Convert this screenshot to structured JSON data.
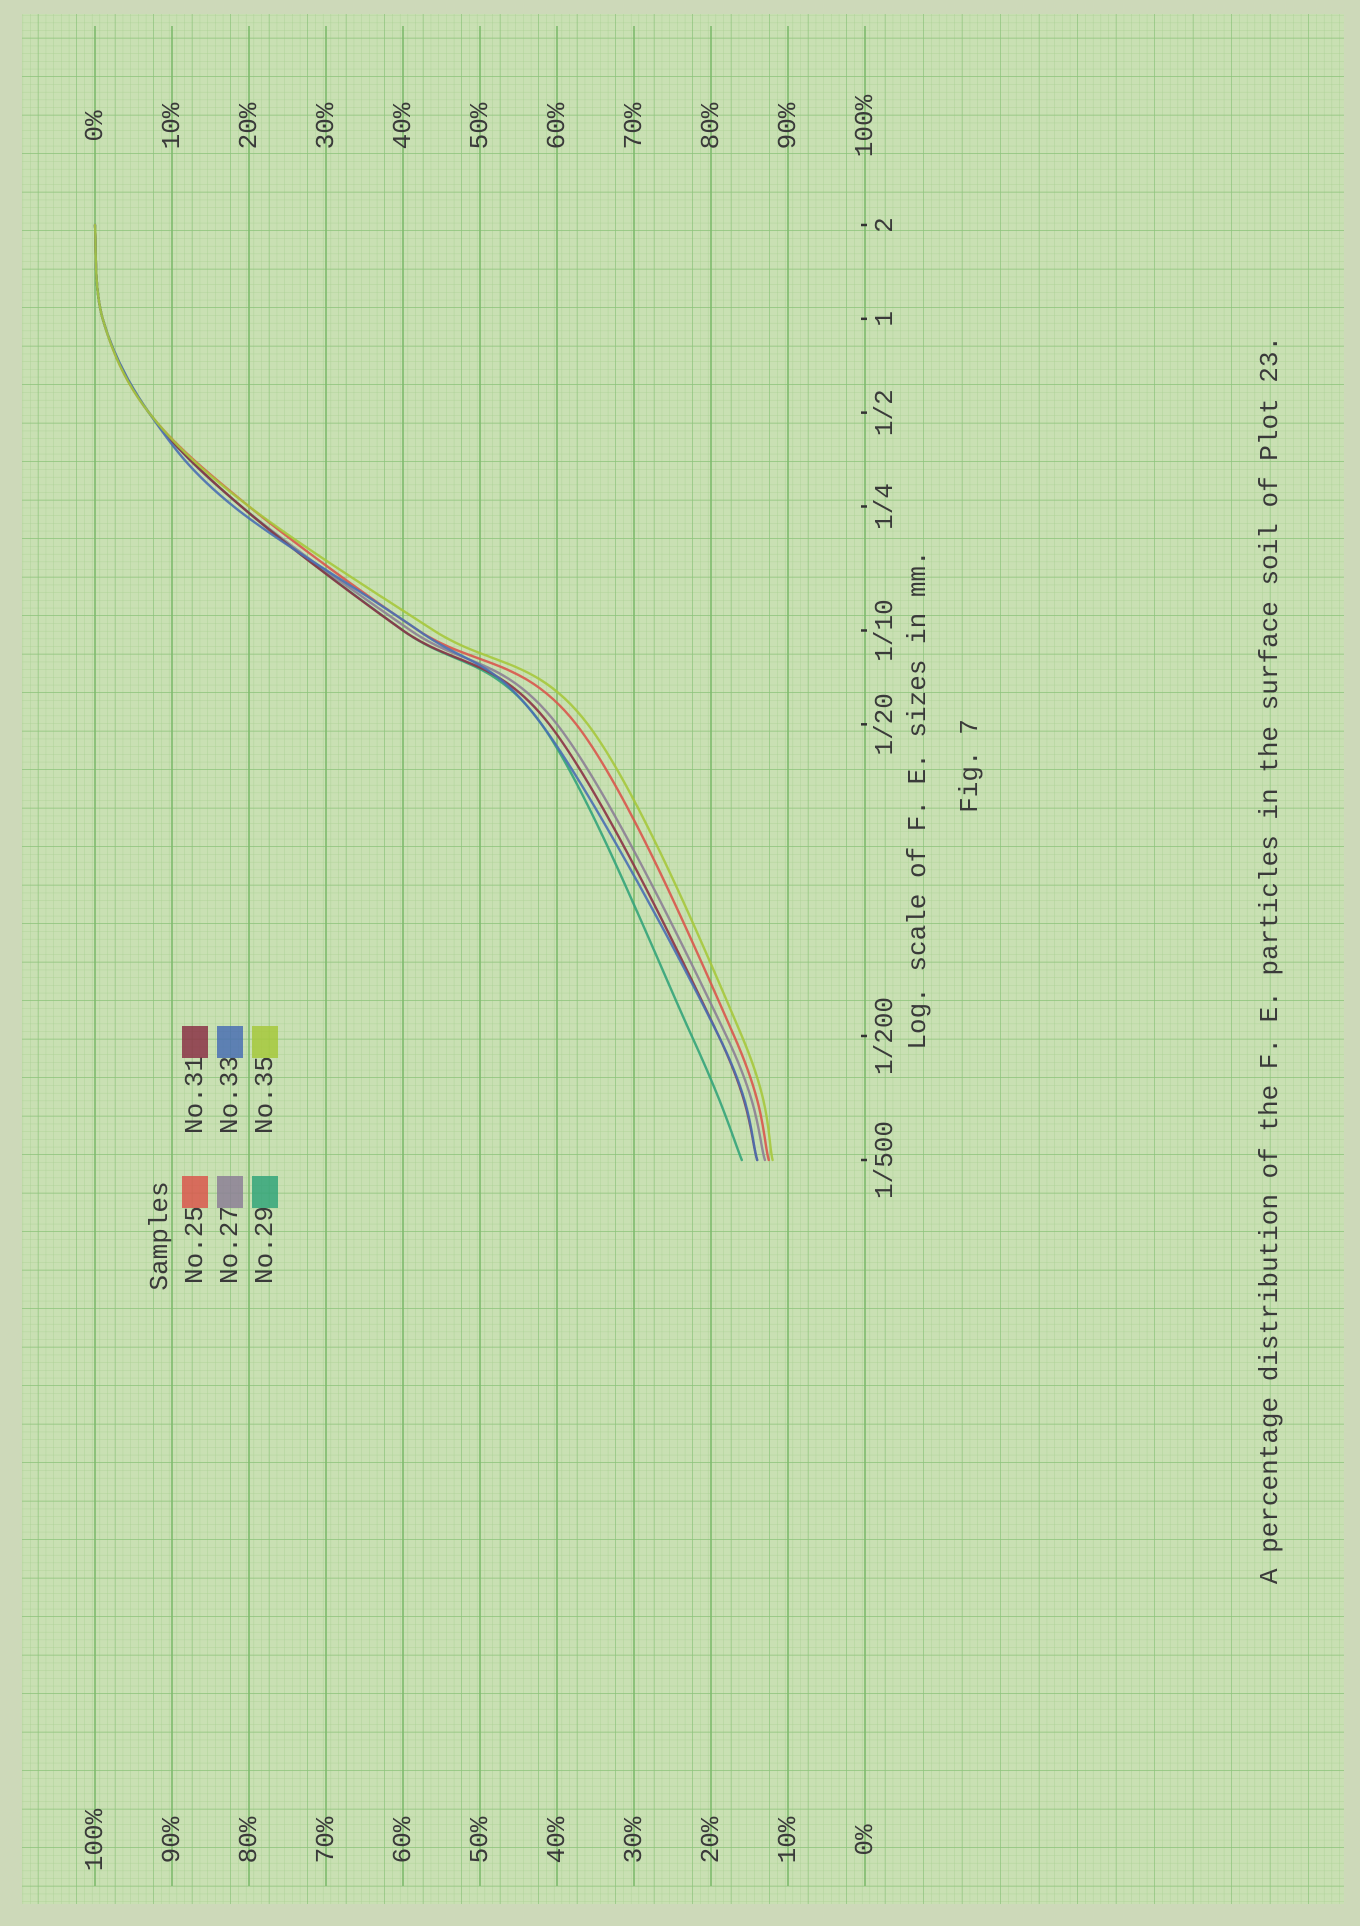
{
  "chart_data": {
    "type": "line",
    "title": "A percentage distribution of the F. E. particles in the surface soil of Plot 23.",
    "x_label": "Log. scale of F. E. sizes in mm.",
    "figure_label": "Fig. 7",
    "legend_title": "Samples",
    "x_scale": "log",
    "grid": true,
    "x": [
      0.002,
      0.005,
      0.05,
      0.1,
      0.25,
      0.5,
      1,
      2
    ],
    "xlim": [
      0.002,
      2
    ],
    "xticks": [
      {
        "value": 0.002,
        "label": "1/500"
      },
      {
        "value": 0.005,
        "label": "1/200"
      },
      {
        "value": 0.05,
        "label": "1/20"
      },
      {
        "value": 0.1,
        "label": "1/10"
      },
      {
        "value": 0.25,
        "label": "1/4"
      },
      {
        "value": 0.5,
        "label": "1/2"
      },
      1,
      2
    ],
    "ylim": [
      0,
      100
    ],
    "yticks": [
      {
        "value": 0,
        "label": "0%"
      },
      {
        "value": 10,
        "label": "10%"
      },
      {
        "value": 20,
        "label": "20%"
      },
      {
        "value": 30,
        "label": "30%"
      },
      {
        "value": 40,
        "label": "40%"
      },
      {
        "value": 50,
        "label": "50%"
      },
      {
        "value": 60,
        "label": "60%"
      },
      {
        "value": 70,
        "label": "70%"
      },
      {
        "value": 80,
        "label": "80%"
      },
      {
        "value": 90,
        "label": "90%"
      },
      {
        "value": 100,
        "label": "100%"
      }
    ],
    "y2lim": [
      100,
      0
    ],
    "y2ticks": [
      {
        "value": 0,
        "label": "0%"
      },
      {
        "value": 10,
        "label": "10%"
      },
      {
        "value": 20,
        "label": "20%"
      },
      {
        "value": 30,
        "label": "30%"
      },
      {
        "value": 40,
        "label": "40%"
      },
      {
        "value": 50,
        "label": "50%"
      },
      {
        "value": 60,
        "label": "60%"
      },
      {
        "value": 70,
        "label": "70%"
      },
      {
        "value": 80,
        "label": "80%"
      },
      {
        "value": 90,
        "label": "90%"
      },
      {
        "value": 100,
        "label": "100%"
      }
    ],
    "series": [
      {
        "name": "No.25",
        "color": "#d9574c",
        "values": [
          12.5,
          17,
          37.5,
          58,
          80,
          93,
          99,
          100
        ]
      },
      {
        "name": "No.27",
        "color": "#8c7f95",
        "values": [
          13,
          18,
          40,
          59,
          81,
          93,
          99,
          100
        ]
      },
      {
        "name": "No.29",
        "color": "#34a47a",
        "values": [
          16,
          22.5,
          42,
          60,
          81,
          93,
          99,
          100
        ]
      },
      {
        "name": "No.31",
        "color": "#8b3346",
        "values": [
          14,
          19,
          41,
          60,
          81,
          93,
          99,
          100
        ]
      },
      {
        "name": "No.33",
        "color": "#4a6fb3",
        "values": [
          14,
          19,
          42,
          58,
          82,
          93,
          99,
          100
        ]
      },
      {
        "name": "No.35",
        "color": "#a6c83c",
        "values": [
          12,
          16,
          36,
          56,
          80,
          93,
          99,
          100
        ]
      }
    ]
  }
}
